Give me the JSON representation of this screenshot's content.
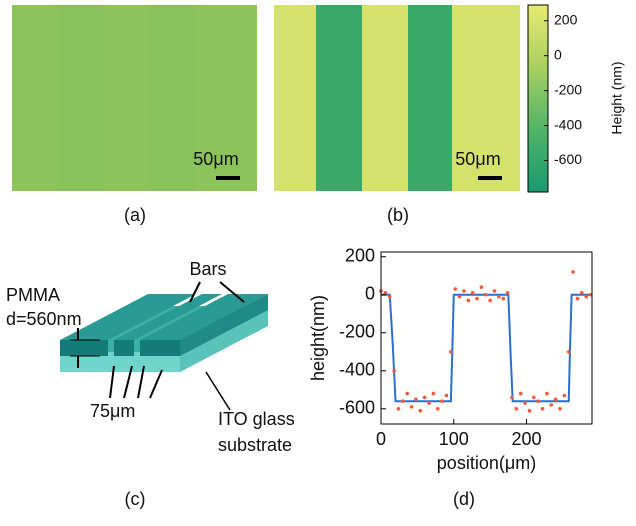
{
  "chart_data": [
    {
      "type": "line",
      "xlabel": "position(μm)",
      "ylabel": "height(nm)",
      "xlim": [
        0,
        290
      ],
      "ylim": [
        -680,
        225
      ],
      "xticks": [
        0,
        100,
        200
      ],
      "yticks": [
        200,
        0,
        -200,
        -400,
        -600
      ],
      "series": [
        {
          "style": "fit",
          "color": "#2a6fd0",
          "x": [
            0,
            12,
            16,
            20,
            96,
            98,
            100,
            175,
            178,
            181,
            258,
            260,
            262,
            290
          ],
          "values": [
            0,
            0,
            -250,
            -560,
            -560,
            -300,
            0,
            0,
            -300,
            -560,
            -560,
            -250,
            0,
            0
          ]
        },
        {
          "style": "measured",
          "color": "#f05a3a",
          "x": [
            0,
            6,
            12,
            18,
            24,
            30,
            36,
            42,
            48,
            54,
            60,
            66,
            72,
            78,
            84,
            90,
            96,
            102,
            108,
            114,
            120,
            126,
            132,
            138,
            144,
            150,
            156,
            162,
            168,
            174,
            180,
            186,
            192,
            198,
            204,
            210,
            216,
            222,
            228,
            234,
            240,
            246,
            252,
            258,
            264,
            270,
            276,
            282,
            288
          ],
          "values": [
            20,
            10,
            -10,
            -400,
            -600,
            -560,
            -520,
            -590,
            -550,
            -610,
            -540,
            -570,
            -520,
            -600,
            -560,
            -530,
            -300,
            30,
            -10,
            20,
            -30,
            10,
            -20,
            40,
            0,
            -30,
            20,
            -10,
            -20,
            10,
            -540,
            -600,
            -520,
            -570,
            -610,
            -540,
            -560,
            -600,
            -520,
            -580,
            -550,
            -600,
            -530,
            -300,
            120,
            -20,
            10,
            -10,
            0
          ]
        }
      ]
    },
    {
      "type": "colorbar",
      "label": "Height (nm)",
      "ylim": [
        -780,
        290
      ],
      "yticks": [
        200,
        0,
        -200,
        -400,
        -600
      ],
      "colors": [
        "#e8ea70",
        "#a8d060",
        "#50b468",
        "#1a9a70"
      ]
    }
  ],
  "panels": {
    "a": {
      "label": "(a)",
      "scale": "50μm"
    },
    "b": {
      "label": "(b)",
      "scale": "50μm"
    },
    "c": {
      "label": "(c)"
    },
    "d": {
      "label": "(d)"
    }
  },
  "diagram": {
    "bars": "Bars",
    "pmma": "PMMA",
    "thickness": "d=560nm",
    "width": "75μm",
    "ito1": "ITO glass",
    "ito2": "substrate"
  }
}
